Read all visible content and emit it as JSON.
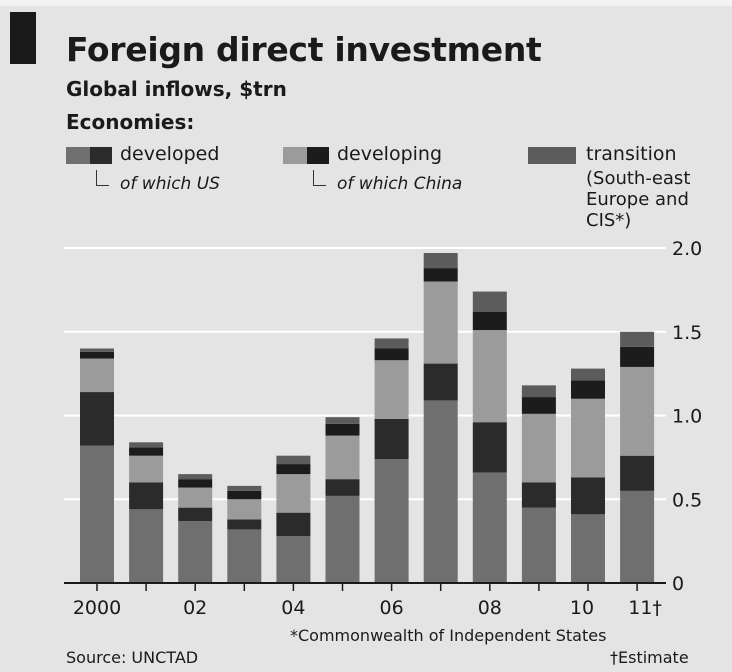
{
  "header": {
    "title": "Foreign direct investment",
    "subtitle": "Global inflows, $trn",
    "legend_heading": "Economies:"
  },
  "legend": {
    "developed": "developed",
    "developed_sub": "of which US",
    "developing": "developing",
    "developing_sub": "of which China",
    "transition": "transition",
    "transition_note": [
      "(South-east",
      "Europe and",
      "CIS*)"
    ]
  },
  "colors": {
    "developed_other": "#6f6f6f",
    "us": "#2b2b2b",
    "developing_other": "#9b9b9b",
    "china": "#1c1c1c",
    "transition": "#5c5c5c",
    "grid": "#ffffff",
    "background": "#e4e4e4"
  },
  "chart_data": {
    "type": "bar",
    "stacked": true,
    "categories": [
      "2000",
      "01",
      "02",
      "03",
      "04",
      "05",
      "06",
      "07",
      "08",
      "09",
      "10",
      "11"
    ],
    "x_tick_labels": [
      "2000",
      "02",
      "04",
      "06",
      "08",
      "10",
      "11†"
    ],
    "y_ticks": [
      "0",
      "0.5",
      "1.0",
      "1.5",
      "2.0"
    ],
    "ylim": [
      0,
      2.0
    ],
    "y_axis_side": "right",
    "grid": true,
    "series": [
      {
        "name": "developed",
        "values": [
          0.82,
          0.44,
          0.37,
          0.32,
          0.28,
          0.52,
          0.74,
          1.09,
          0.66,
          0.45,
          0.41,
          0.55
        ]
      },
      {
        "name": "of which US",
        "values": [
          0.32,
          0.16,
          0.08,
          0.06,
          0.14,
          0.1,
          0.24,
          0.22,
          0.3,
          0.15,
          0.22,
          0.21
        ]
      },
      {
        "name": "developing",
        "values": [
          0.2,
          0.16,
          0.12,
          0.12,
          0.23,
          0.26,
          0.35,
          0.49,
          0.55,
          0.41,
          0.47,
          0.53
        ]
      },
      {
        "name": "of which China",
        "values": [
          0.04,
          0.05,
          0.05,
          0.05,
          0.06,
          0.07,
          0.07,
          0.08,
          0.11,
          0.1,
          0.11,
          0.12
        ]
      },
      {
        "name": "transition",
        "values": [
          0.02,
          0.03,
          0.03,
          0.03,
          0.05,
          0.04,
          0.06,
          0.09,
          0.12,
          0.07,
          0.07,
          0.09
        ]
      }
    ]
  },
  "footer": {
    "source": "Source: UNCTAD",
    "note1": "*Commonwealth of Independent States",
    "note2": "†Estimate"
  }
}
